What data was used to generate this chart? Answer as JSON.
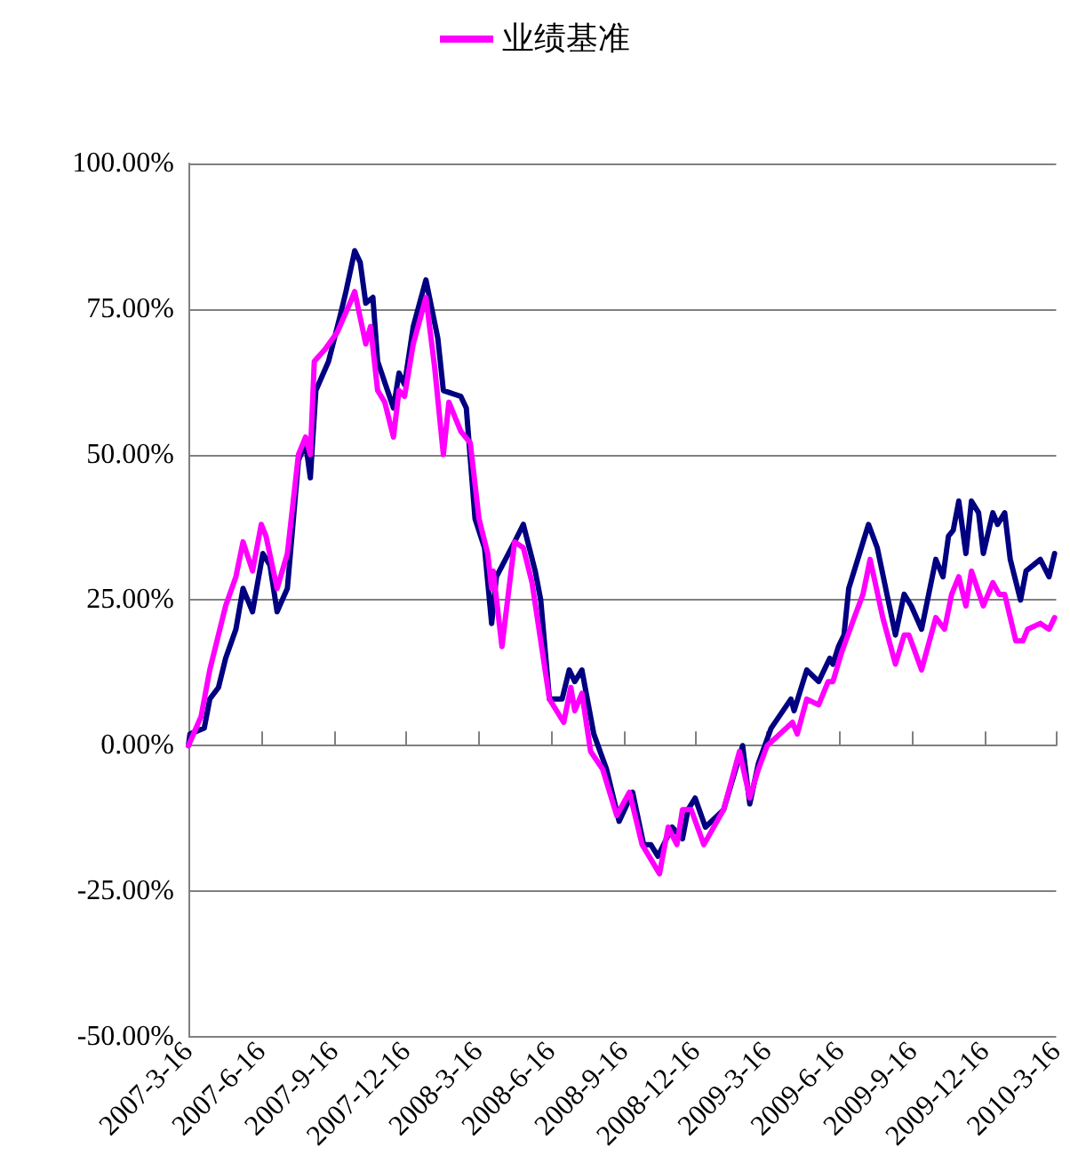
{
  "chart_data": {
    "type": "line",
    "legend": "top",
    "grid": "y",
    "marker": "none",
    "line_style": "solid",
    "xlim": [
      "2007-03-16",
      "2010-03-16"
    ],
    "xticks": [
      {
        "value": "2007-03-16",
        "label": "2007-3-16"
      },
      {
        "value": "2007-06-16",
        "label": "2007-6-16"
      },
      {
        "value": "2007-09-16",
        "label": "2007-9-16"
      },
      {
        "value": "2007-12-16",
        "label": "2007-12-16"
      },
      {
        "value": "2008-03-16",
        "label": "2008-3-16"
      },
      {
        "value": "2008-06-16",
        "label": "2008-6-16"
      },
      {
        "value": "2008-09-16",
        "label": "2008-9-16"
      },
      {
        "value": "2008-12-16",
        "label": "2008-12-16"
      },
      {
        "value": "2009-03-16",
        "label": "2009-3-16"
      },
      {
        "value": "2009-06-16",
        "label": "2009-6-16"
      },
      {
        "value": "2009-09-16",
        "label": "2009-9-16"
      },
      {
        "value": "2009-12-16",
        "label": "2009-12-16"
      },
      {
        "value": "2010-03-16",
        "label": "2010-3-16"
      }
    ],
    "ylim": [
      -50,
      100
    ],
    "yticks": [
      {
        "value": -50,
        "label": "-50.00%"
      },
      {
        "value": -25,
        "label": "-25.00%"
      },
      {
        "value": 0,
        "label": "0.00%"
      },
      {
        "value": 25,
        "label": "25.00%"
      },
      {
        "value": 50,
        "label": "50.00%"
      },
      {
        "value": 75,
        "label": "75.00%"
      },
      {
        "value": 100,
        "label": "100.00%"
      }
    ],
    "series": [
      {
        "color": "#000080",
        "x": [
          "2007-03-16",
          "2007-03-18",
          "2007-04-05",
          "2007-04-12",
          "2007-04-23",
          "2007-05-02",
          "2007-05-15",
          "2007-05-24",
          "2007-06-05",
          "2007-06-18",
          "2007-06-27",
          "2007-07-06",
          "2007-07-19",
          "2007-08-02",
          "2007-08-11",
          "2007-08-17",
          "2007-08-24",
          "2007-09-09",
          "2007-09-24",
          "2007-10-01",
          "2007-10-12",
          "2007-10-19",
          "2007-10-26",
          "2007-11-04",
          "2007-11-10",
          "2007-11-30",
          "2007-12-07",
          "2007-12-14",
          "2007-12-25",
          "2008-01-10",
          "2008-01-25",
          "2008-02-01",
          "2008-02-23",
          "2008-03-01",
          "2008-03-12",
          "2008-03-24",
          "2008-04-02",
          "2008-04-08",
          "2008-05-01",
          "2008-05-12",
          "2008-05-27",
          "2008-06-03",
          "2008-06-14",
          "2008-06-30",
          "2008-07-09",
          "2008-07-16",
          "2008-07-25",
          "2008-08-09",
          "2008-08-25",
          "2008-09-10",
          "2008-09-27",
          "2008-10-11",
          "2008-10-20",
          "2008-10-29",
          "2008-11-16",
          "2008-11-29",
          "2008-12-06",
          "2008-12-15",
          "2008-12-28",
          "2009-01-20",
          "2009-02-13",
          "2009-02-22",
          "2009-03-05",
          "2009-03-21",
          "2009-04-15",
          "2009-04-19",
          "2009-05-05",
          "2009-05-20",
          "2009-06-03",
          "2009-06-07",
          "2009-06-14",
          "2009-06-21",
          "2009-06-27",
          "2009-07-22",
          "2009-08-02",
          "2009-08-25",
          "2009-09-05",
          "2009-09-14",
          "2009-09-27",
          "2009-10-15",
          "2009-10-24",
          "2009-10-31",
          "2009-11-06",
          "2009-11-13",
          "2009-11-22",
          "2009-11-29",
          "2009-12-08",
          "2009-12-14",
          "2009-12-26",
          "2010-01-01",
          "2010-01-10",
          "2010-01-17",
          "2010-01-30",
          "2010-02-06",
          "2010-02-24",
          "2010-03-07",
          "2010-03-14"
        ],
        "values": [
          0,
          2,
          3,
          8,
          10,
          15,
          20,
          27,
          23,
          33,
          31,
          23,
          27,
          49,
          52,
          46,
          61,
          66,
          74,
          78,
          85,
          83,
          76,
          77,
          66,
          58,
          64,
          62,
          72,
          80,
          70,
          61,
          60,
          58,
          39,
          34,
          21,
          29,
          35,
          38,
          30,
          25,
          8,
          8,
          13,
          11,
          13,
          2,
          -4,
          -13,
          -8,
          -17,
          -17,
          -19,
          -14,
          -16,
          -11,
          -9,
          -14,
          -11,
          0,
          -10,
          -3,
          3,
          8,
          6,
          13,
          11,
          15,
          14,
          17,
          19,
          27,
          38,
          34,
          19,
          26,
          24,
          20,
          32,
          29,
          36,
          37,
          42,
          33,
          42,
          40,
          33,
          40,
          38,
          40,
          32,
          25,
          30,
          32,
          29,
          33
        ]
      },
      {
        "name": "业绩基准",
        "color": "#ff00ff",
        "x": [
          "2007-03-16",
          "2007-04-01",
          "2007-04-12",
          "2007-05-02",
          "2007-05-15",
          "2007-05-24",
          "2007-06-05",
          "2007-06-16",
          "2007-06-22",
          "2007-07-06",
          "2007-07-19",
          "2007-08-02",
          "2007-08-11",
          "2007-08-17",
          "2007-08-22",
          "2007-09-04",
          "2007-09-20",
          "2007-10-06",
          "2007-10-12",
          "2007-10-26",
          "2007-11-01",
          "2007-11-10",
          "2007-11-19",
          "2007-11-30",
          "2007-12-07",
          "2007-12-14",
          "2007-12-25",
          "2008-01-10",
          "2008-01-21",
          "2008-02-01",
          "2008-02-08",
          "2008-02-23",
          "2008-03-06",
          "2008-03-17",
          "2008-03-28",
          "2008-04-02",
          "2008-04-04",
          "2008-04-15",
          "2008-05-01",
          "2008-05-12",
          "2008-05-23",
          "2008-06-14",
          "2008-07-02",
          "2008-07-11",
          "2008-07-16",
          "2008-07-25",
          "2008-08-05",
          "2008-08-20",
          "2008-09-07",
          "2008-09-23",
          "2008-10-09",
          "2008-10-31",
          "2008-11-11",
          "2008-11-22",
          "2008-11-29",
          "2008-12-10",
          "2008-12-26",
          "2009-01-20",
          "2009-02-09",
          "2009-02-22",
          "2009-03-05",
          "2009-03-16",
          "2009-04-01",
          "2009-04-17",
          "2009-04-23",
          "2009-05-05",
          "2009-05-20",
          "2009-06-01",
          "2009-06-07",
          "2009-06-18",
          "2009-07-04",
          "2009-07-15",
          "2009-07-24",
          "2009-08-09",
          "2009-08-25",
          "2009-09-05",
          "2009-09-11",
          "2009-09-27",
          "2009-10-15",
          "2009-10-26",
          "2009-11-04",
          "2009-11-13",
          "2009-11-22",
          "2009-11-29",
          "2009-12-14",
          "2009-12-26",
          "2010-01-03",
          "2010-01-10",
          "2010-01-24",
          "2010-02-02",
          "2010-02-08",
          "2010-02-24",
          "2010-03-07",
          "2010-03-14"
        ],
        "values": [
          0,
          5,
          13,
          24,
          29,
          35,
          30,
          38,
          36,
          27,
          33,
          50,
          53,
          50,
          66,
          68,
          71,
          76,
          78,
          69,
          72,
          61,
          59,
          53,
          61,
          60,
          69,
          77,
          65,
          50,
          59,
          54,
          52,
          39,
          33,
          27,
          30,
          17,
          35,
          34,
          28,
          8,
          4,
          10,
          6,
          9,
          -1,
          -4,
          -12,
          -8,
          -17,
          -22,
          -14,
          -17,
          -11,
          -11,
          -17,
          -11,
          -1,
          -9,
          -4,
          0,
          2,
          4,
          2,
          8,
          7,
          11,
          11,
          16,
          22,
          26,
          32,
          22,
          14,
          19,
          19,
          13,
          22,
          20,
          26,
          29,
          24,
          30,
          24,
          28,
          26,
          26,
          18,
          18,
          20,
          21,
          20,
          22
        ]
      }
    ]
  }
}
